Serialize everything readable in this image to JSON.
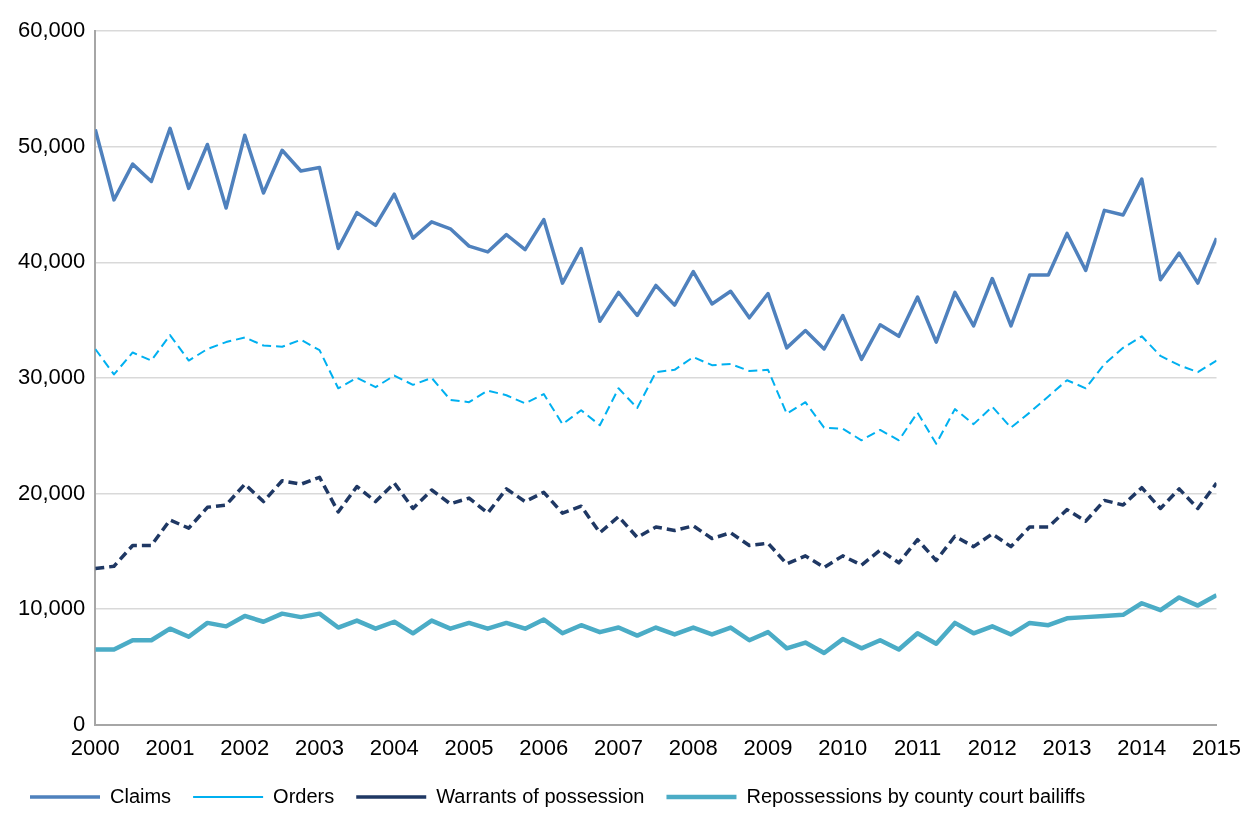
{
  "chart_data": {
    "type": "line",
    "x": [
      2000,
      2000.25,
      2000.5,
      2000.75,
      2001,
      2001.25,
      2001.5,
      2001.75,
      2002,
      2002.25,
      2002.5,
      2002.75,
      2003,
      2003.25,
      2003.5,
      2003.75,
      2004,
      2004.25,
      2004.5,
      2004.75,
      2005,
      2005.25,
      2005.5,
      2005.75,
      2006,
      2006.25,
      2006.5,
      2006.75,
      2007,
      2007.25,
      2007.5,
      2007.75,
      2008,
      2008.25,
      2008.5,
      2008.75,
      2009,
      2009.25,
      2009.5,
      2009.75,
      2010,
      2010.25,
      2010.5,
      2010.75,
      2011,
      2011.25,
      2011.5,
      2011.75,
      2012,
      2012.25,
      2012.5,
      2012.75,
      2013,
      2013.25,
      2013.5,
      2013.75,
      2014,
      2014.25,
      2014.5,
      2014.75,
      2015
    ],
    "xlim": [
      2000,
      2015
    ],
    "xticks": [
      2000,
      2001,
      2002,
      2003,
      2004,
      2005,
      2006,
      2007,
      2008,
      2009,
      2010,
      2011,
      2012,
      2013,
      2014,
      2015
    ],
    "ylim": [
      0,
      60000
    ],
    "yticks": [
      0,
      {
        "value": 10000,
        "label": "10,000"
      },
      {
        "value": 20000,
        "label": "20,000"
      },
      {
        "value": 30000,
        "label": "30,000"
      },
      {
        "value": 40000,
        "label": "40,000"
      },
      {
        "value": 50000,
        "label": "50,000"
      },
      {
        "value": 60000,
        "label": "60,000"
      }
    ],
    "grid": "y",
    "legend": "bottom",
    "marker": "none",
    "series": [
      {
        "name": "Claims",
        "color": "#4f81bd",
        "line_style": "solid",
        "values": [
          51500,
          45400,
          48500,
          47000,
          51600,
          46400,
          50200,
          44700,
          51000,
          46000,
          49700,
          47900,
          48200,
          41200,
          44300,
          43200,
          45900,
          42100,
          43500,
          42900,
          41400,
          40900,
          42400,
          41100,
          43700,
          38200,
          41200,
          34900,
          37400,
          35400,
          38000,
          36300,
          39200,
          36400,
          37500,
          35200,
          37300,
          32600,
          34100,
          32500,
          35400,
          31600,
          34600,
          33600,
          37000,
          33100,
          37400,
          34500,
          38600,
          34500,
          38900,
          38900,
          42500,
          39300,
          44500,
          44100,
          47200,
          38500,
          40800,
          38200,
          42100
        ]
      },
      {
        "name": "Orders",
        "color": "#00b0f0",
        "line_style": "dashed",
        "values": [
          32500,
          30300,
          32200,
          31500,
          33700,
          31500,
          32500,
          33100,
          33500,
          32800,
          32700,
          33300,
          32400,
          29100,
          30000,
          29200,
          30200,
          29400,
          30000,
          28100,
          27900,
          28900,
          28500,
          27800,
          28600,
          26000,
          27200,
          25900,
          29100,
          27400,
          30500,
          30700,
          31800,
          31100,
          31200,
          30600,
          30700,
          26900,
          27900,
          25700,
          25600,
          24600,
          25500,
          24600,
          27000,
          24300,
          27300,
          26000,
          27500,
          25700,
          27000,
          28400,
          29800,
          29100,
          31200,
          32600,
          33600,
          31900,
          31100,
          30500,
          31500
        ]
      },
      {
        "name": "Warrants of possession",
        "color": "#1f3864",
        "line_style": "dashed",
        "values": [
          13500,
          13700,
          15500,
          15500,
          17700,
          17000,
          18800,
          19000,
          20800,
          19300,
          21100,
          20800,
          21400,
          18400,
          20600,
          19300,
          20900,
          18700,
          20300,
          19100,
          19600,
          18300,
          20400,
          19300,
          20100,
          18300,
          18900,
          16600,
          18000,
          16200,
          17100,
          16800,
          17200,
          16100,
          16600,
          15500,
          15700,
          13900,
          14600,
          13600,
          14600,
          13800,
          15100,
          14000,
          16000,
          14200,
          16300,
          15400,
          16500,
          15400,
          17100,
          17100,
          18600,
          17600,
          19400,
          19000,
          20500,
          18700,
          20400,
          18700,
          20900
        ]
      },
      {
        "name": "Repossessions by county court bailiffs",
        "color": "#4bacc6",
        "line_style": "solid",
        "values": [
          6500,
          6500,
          7300,
          7300,
          8300,
          7600,
          8800,
          8500,
          9400,
          8900,
          9600,
          9300,
          9600,
          8400,
          9000,
          8300,
          8900,
          7900,
          9000,
          8300,
          8800,
          8300,
          8800,
          8300,
          9100,
          7900,
          8600,
          8000,
          8400,
          7700,
          8400,
          7800,
          8400,
          7800,
          8400,
          7300,
          8000,
          6600,
          7100,
          6200,
          7400,
          6600,
          7300,
          6500,
          7900,
          7000,
          8800,
          7900,
          8500,
          7800,
          8800,
          8600,
          9200,
          9300,
          9400,
          9500,
          10500,
          9900,
          11000,
          10300,
          11200
        ]
      }
    ]
  }
}
